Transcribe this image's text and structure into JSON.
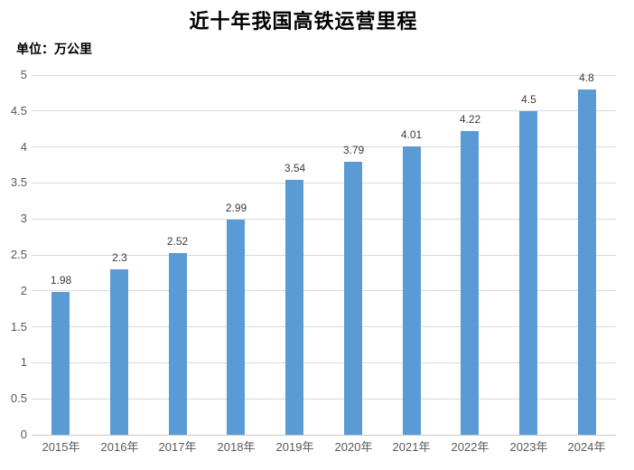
{
  "chart_data": {
    "type": "bar",
    "title": "近十年我国高铁运营里程",
    "unit_label": "单位：万公里",
    "xlabel": "",
    "ylabel": "",
    "categories": [
      "2015年",
      "2016年",
      "2017年",
      "2018年",
      "2019年",
      "2020年",
      "2021年",
      "2022年",
      "2023年",
      "2024年"
    ],
    "values": [
      1.98,
      2.3,
      2.52,
      2.99,
      3.54,
      3.79,
      4.01,
      4.22,
      4.5,
      4.8
    ],
    "data_labels": [
      "1.98",
      "2.3",
      "2.52",
      "2.99",
      "3.54",
      "3.79",
      "4.01",
      "4.22",
      "4.5",
      "4.8"
    ],
    "ylim": [
      0,
      5
    ],
    "y_ticks": [
      "0",
      "0.5",
      "1",
      "1.5",
      "2",
      "2.5",
      "3",
      "3.5",
      "4",
      "4.5",
      "5"
    ],
    "grid": true,
    "legend_position": "none",
    "colors": {
      "bar": "#5B9BD5",
      "gridline": "#d9d9d9",
      "axis_label": "#595959",
      "data_label": "#3b3b3b",
      "title": "#000000"
    }
  }
}
